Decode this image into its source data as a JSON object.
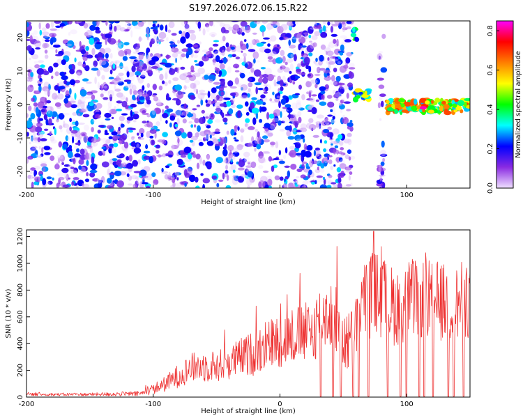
{
  "figure_title": "S197.2026.072.06.15.R22",
  "chart_data": [
    {
      "type": "heatmap",
      "title": "",
      "xlabel": "Height of straight line (km)",
      "ylabel": "Frequency (Hz)",
      "xlim": [
        -200,
        150
      ],
      "ylim": [
        -25,
        25
      ],
      "xticks": [
        "-200",
        "-100",
        "0",
        "100"
      ],
      "yticks": [
        "-20",
        "-10",
        "0",
        "10",
        "20"
      ],
      "colorbar": {
        "label": "Normalized spectral amplitude",
        "range": [
          0,
          0.85
        ],
        "ticks": [
          "0.0",
          "0.2",
          "0.4",
          "0.6",
          "0.8"
        ],
        "colors": [
          "#f0e0ff",
          "#8a2be2",
          "#0000ff",
          "#00ffff",
          "#00ff00",
          "#ffff00",
          "#ff7f00",
          "#ff0000",
          "#ff00ff"
        ]
      },
      "regions": [
        {
          "x_range": [
            -200,
            57
          ],
          "y_range": [
            -25,
            25
          ],
          "level": 0.12,
          "kind": "noise"
        },
        {
          "x_range": [
            58,
            61
          ],
          "y_range": [
            19,
            23
          ],
          "level": 0.35,
          "kind": "burst"
        },
        {
          "x_range": [
            59,
            70
          ],
          "y_range": [
            1,
            5
          ],
          "level": 0.45,
          "kind": "band"
        },
        {
          "x_range": [
            78,
            82
          ],
          "y_range": [
            -25,
            25
          ],
          "level": 0.1,
          "kind": "noise"
        },
        {
          "x_range": [
            84,
            150
          ],
          "y_range": [
            -3,
            2
          ],
          "level": 0.55,
          "kind": "band"
        }
      ],
      "peak": {
        "x": 113,
        "y": -1,
        "value": 0.82
      }
    },
    {
      "type": "line",
      "title": "",
      "xlabel": "Height of straight line (km)",
      "ylabel": "SNR (10 * v/v)",
      "xlim": [
        -200,
        150
      ],
      "ylim": [
        0,
        1250
      ],
      "xticks": [
        "-200",
        "-100",
        "0",
        "100"
      ],
      "yticks": [
        "0",
        "200",
        "400",
        "600",
        "800",
        "1000",
        "1200"
      ],
      "color": "#ee3333",
      "x": [
        -200,
        -150,
        -110,
        -100,
        -90,
        -80,
        -70,
        -60,
        -50,
        -40,
        -30,
        -20,
        -10,
        0,
        10,
        20,
        25,
        30,
        35,
        40,
        45,
        50,
        55,
        60,
        65,
        70,
        75,
        80,
        85,
        90,
        95,
        100,
        105,
        110,
        115,
        120,
        125,
        130,
        135,
        140,
        145,
        150
      ],
      "values": [
        20,
        20,
        25,
        60,
        100,
        160,
        220,
        230,
        230,
        260,
        300,
        330,
        400,
        420,
        460,
        480,
        470,
        560,
        620,
        630,
        560,
        450,
        400,
        560,
        700,
        750,
        780,
        750,
        700,
        680,
        690,
        720,
        740,
        730,
        740,
        720,
        720,
        700,
        690,
        700,
        720,
        740
      ],
      "spread": [
        10,
        12,
        20,
        40,
        60,
        90,
        110,
        120,
        120,
        130,
        150,
        170,
        190,
        200,
        220,
        230,
        240,
        260,
        270,
        280,
        280,
        260,
        240,
        280,
        300,
        320,
        330,
        320,
        310,
        300,
        300,
        300,
        300,
        300,
        300,
        300,
        300,
        300,
        300,
        300,
        300,
        300
      ],
      "dropouts": [
        32,
        42,
        48,
        58,
        62,
        70,
        85,
        95,
        100,
        110,
        114,
        121,
        133,
        137,
        145
      ],
      "peak": {
        "x": 74,
        "value": 1240
      }
    }
  ]
}
